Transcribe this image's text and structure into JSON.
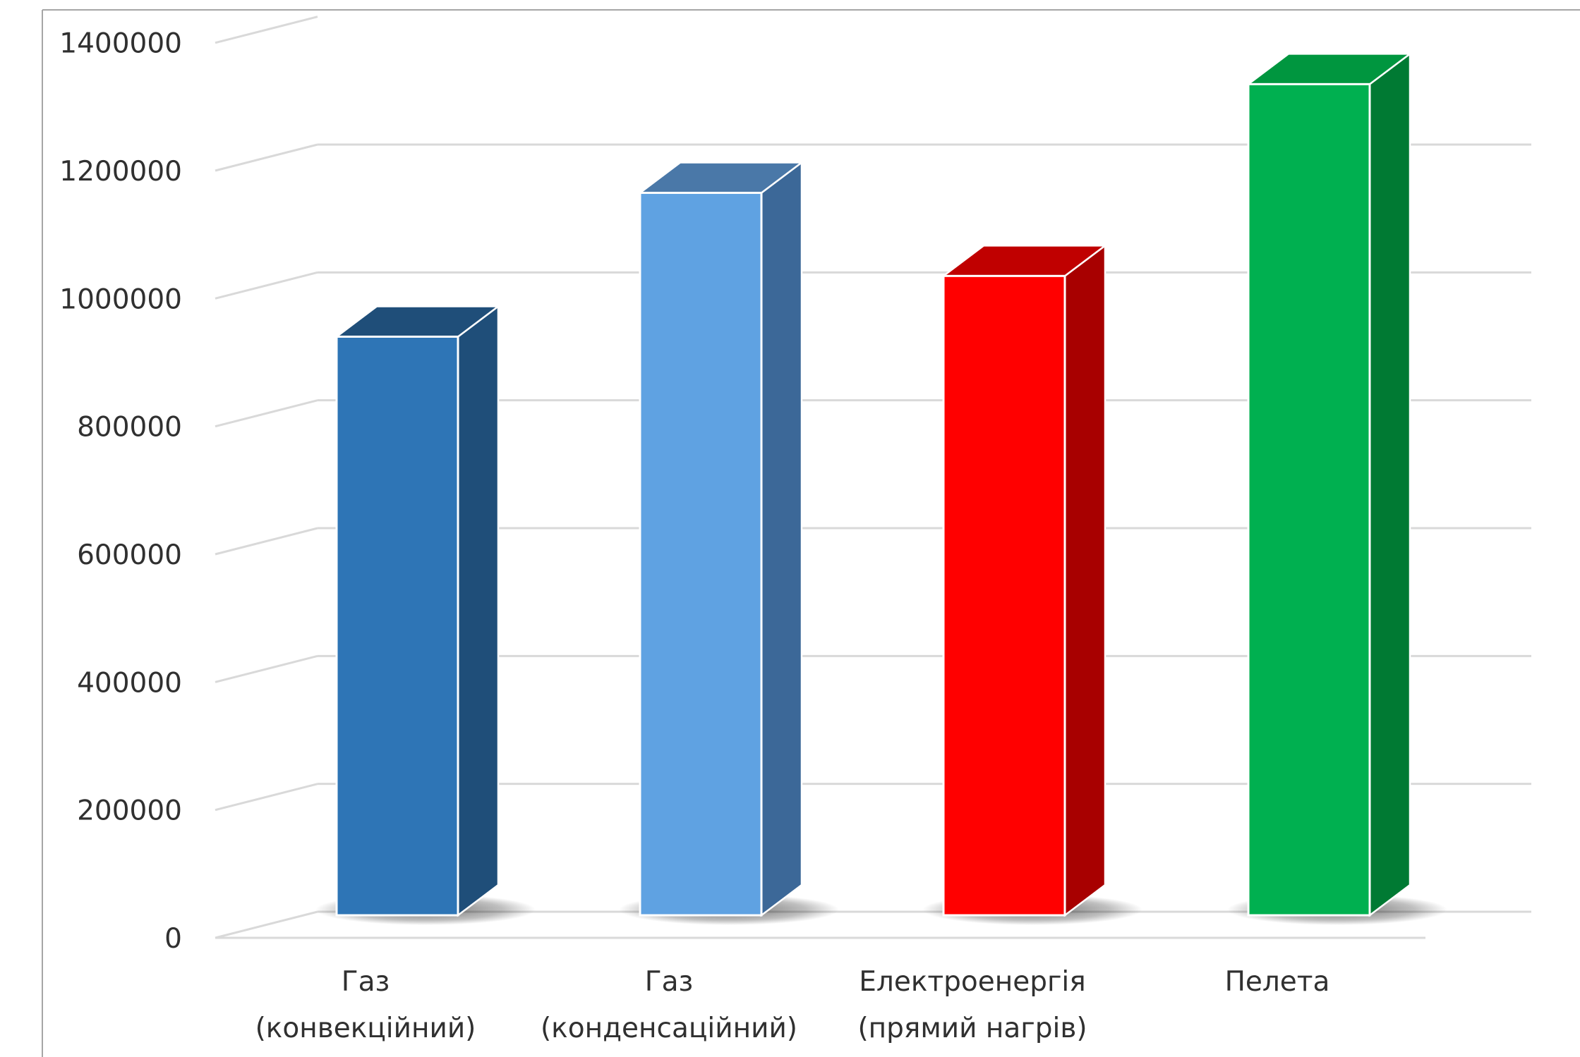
{
  "chart_data": {
    "type": "bar",
    "style": "3d-column",
    "categories": [
      [
        "Газ",
        "(конвекційний)"
      ],
      [
        "Газ",
        "(конденсаційний)"
      ],
      [
        "Електроенергія",
        "(прямий нагрів)"
      ],
      [
        "Пелета"
      ]
    ],
    "values": [
      905000,
      1130000,
      1000000,
      1300000
    ],
    "colors": [
      {
        "front": "#2e75b6",
        "top": "#1f4e79",
        "side": "#1f4e79"
      },
      {
        "front": "#5fa2e2",
        "top": "#4a78a8",
        "side": "#3c6898"
      },
      {
        "front": "#ff0000",
        "top": "#c00000",
        "side": "#a80000"
      },
      {
        "front": "#00b050",
        "top": "#00963f",
        "side": "#007a33"
      }
    ],
    "title": "",
    "xlabel": "",
    "ylabel": "",
    "ylim": [
      0,
      1400000
    ],
    "yticks": [
      0,
      200000,
      400000,
      600000,
      800000,
      1000000,
      1200000,
      1400000
    ],
    "ytick_labels": [
      "0",
      "200000",
      "400000",
      "600000",
      "800000",
      "1000000",
      "1200000",
      "1400000"
    ],
    "grid": true,
    "legend": "none"
  }
}
